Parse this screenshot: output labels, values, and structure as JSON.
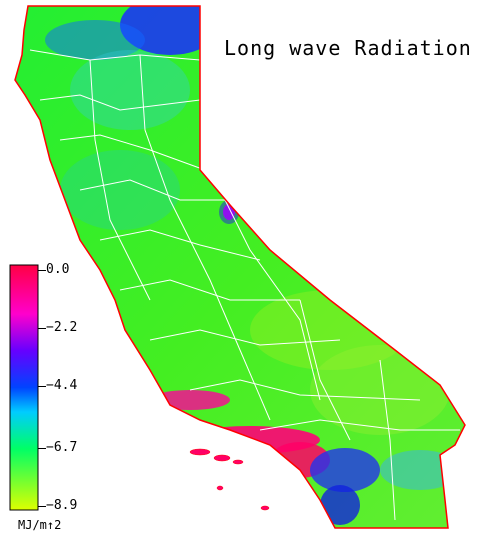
{
  "title": "Long wave Radiation",
  "legend": {
    "ticks": [
      "0.0",
      "−2.2",
      "−4.4",
      "−6.7",
      "−8.9"
    ],
    "units": "MJ/m↑2",
    "colors": [
      "#ff0055",
      "#ff00ff",
      "#0000ff",
      "#00ccff",
      "#00ff66",
      "#ccff00"
    ]
  },
  "map": {
    "region": "California",
    "colors": {
      "land": "#33ee33",
      "border": "#ff0000",
      "county_lines": "#ffffff",
      "coastal_high": "#ff0066",
      "northeast_low": "#2244ff"
    }
  }
}
